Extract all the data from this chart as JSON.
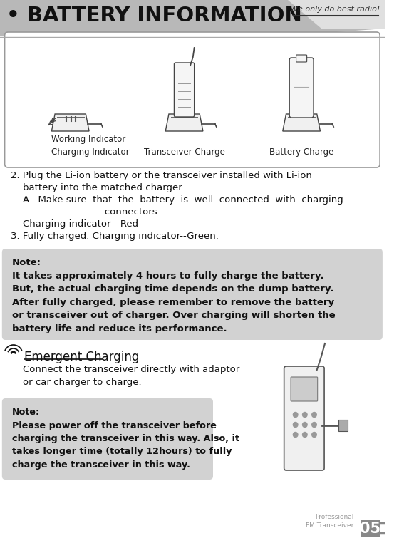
{
  "title": "BATTERY INFORMATION",
  "title_bullet": "•",
  "tagline": "We only do best radio!",
  "page_num": "05",
  "page_label1": "Professional",
  "page_label2": "FM Transceiver",
  "bg_color": "#ffffff",
  "note_bg": "#d2d2d2",
  "section_title": "Emergent Charging",
  "body_lines": [
    "2. Plug the Li-ion battery or the transceiver installed with Li-ion",
    "    battery into the matched charger.",
    "    A.  Make sure  that  the  battery  is  well  connected  with  charging",
    "                               connectors.",
    "    Charging indicator---Red",
    "3. Fully charged. Charging indicator--Green."
  ],
  "note1_lines": [
    "Note:",
    "It takes approximately 4 hours to fully charge the battery.",
    "But, the actual charging time depends on the dump battery.",
    "After fully charged, please remember to remove the battery",
    "or transceiver out of charger. Over charging will shorten the",
    "battery life and reduce its performance."
  ],
  "emergent_body": [
    "    Connect the transceiver directly with adaptor",
    "    or car charger to charge."
  ],
  "note2_lines": [
    "Note:",
    "Please power off the transceiver before",
    "charging the transceiver in this way. Also, it",
    "takes longer time (totally 12hours) to fully",
    "charge the transceiver in this way."
  ],
  "img_labels": [
    "Working Indicator\nCharging Indicator",
    "Transceiver Charge",
    "Battery Charge"
  ]
}
